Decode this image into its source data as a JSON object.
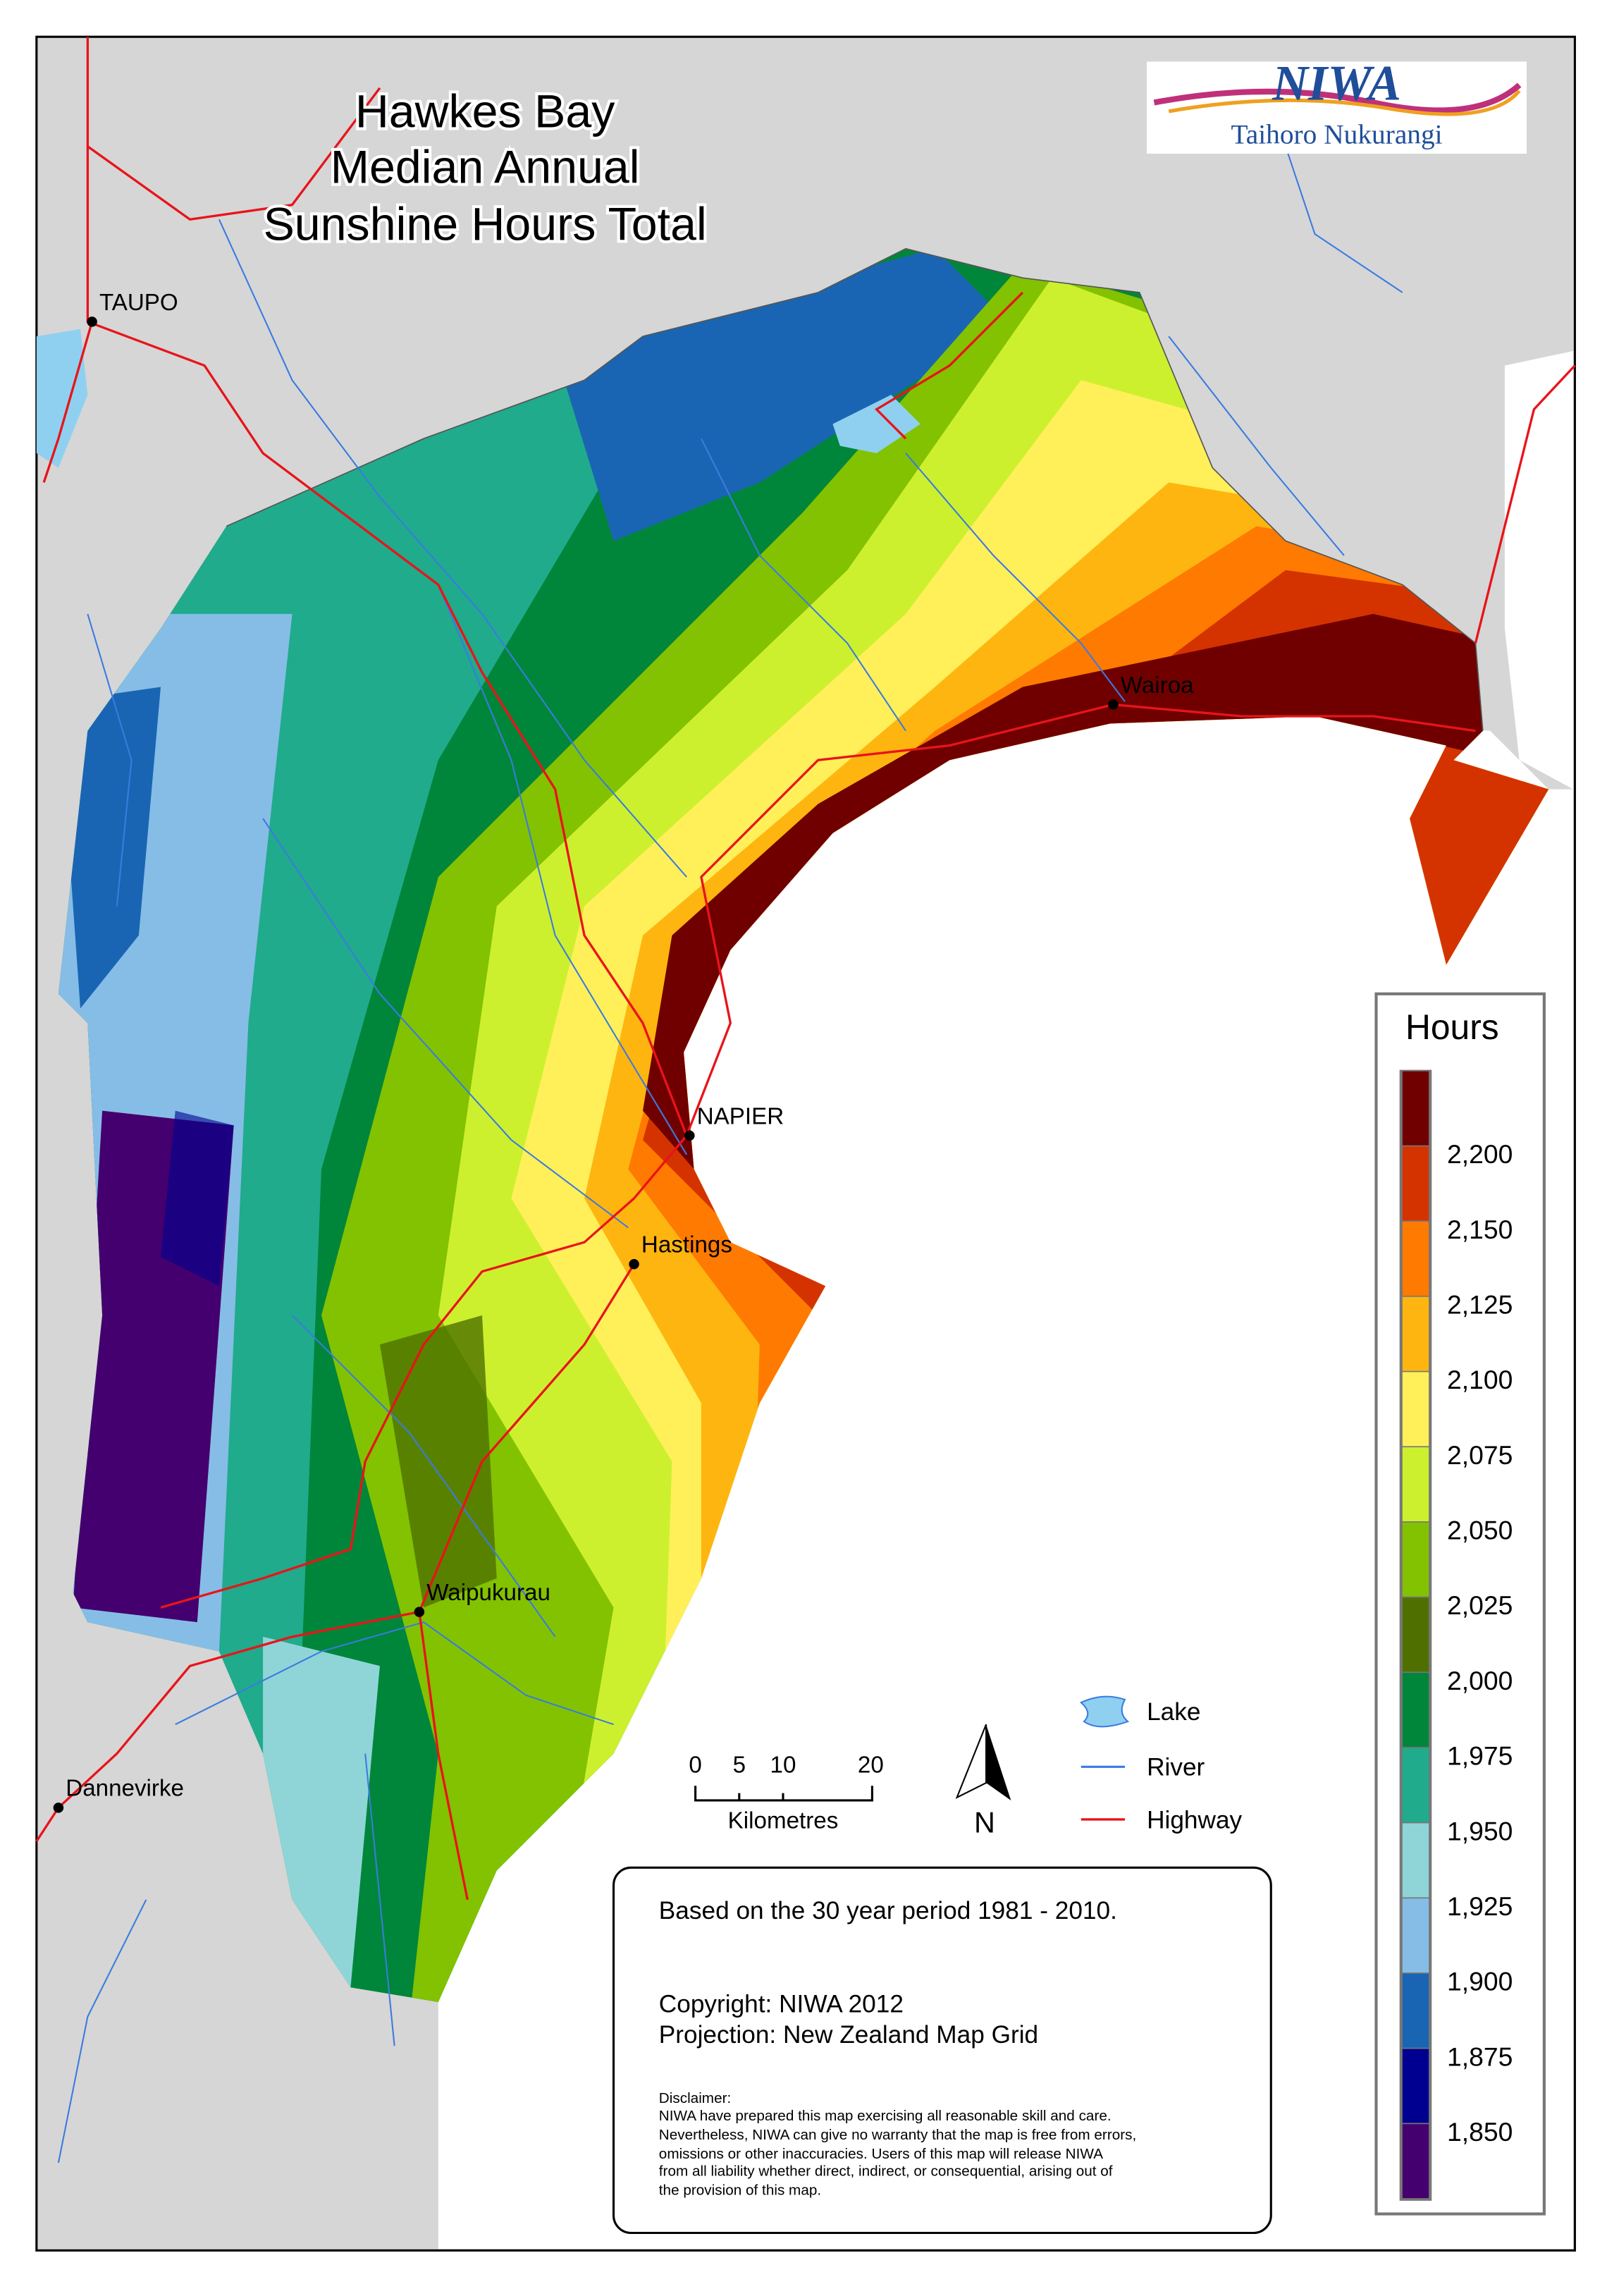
{
  "title": [
    "Hawkes Bay",
    "Median Annual",
    "Sunshine Hours Total"
  ],
  "logo": {
    "name": "NIWA",
    "tagline": "Taihoro Nukurangi"
  },
  "places": {
    "taupo": "TAUPO",
    "wairoa": "Wairoa",
    "napier": "NAPIER",
    "hastings": "Hastings",
    "waipukurau": "Waipukurau",
    "dannevirke": "Dannevirke"
  },
  "scale_bar": {
    "ticks": [
      "0",
      "5",
      "10",
      "20"
    ],
    "unit": "Kilometres"
  },
  "north_arrow": {
    "label": "N"
  },
  "feature_legend": {
    "lake": "Lake",
    "river": "River",
    "highway": "Highway"
  },
  "info": {
    "period": "Based on the 30 year period 1981 - 2010.",
    "copyright": "Copyright: NIWA 2012",
    "projection": "Projection: New Zealand Map Grid",
    "disclaimer": [
      "Disclaimer:",
      "NIWA have prepared this map exercising all reasonable skill and care.",
      "Nevertheless, NIWA can give no warranty that the map is free from errors,",
      "omissions or other inaccuracies. Users of this map will release NIWA",
      "from all liability whether direct, indirect, or consequential, arising out of",
      "the provision of this map."
    ]
  },
  "legend": {
    "title": "Hours",
    "colors": [
      "#700000",
      "#d43300",
      "#ff7a00",
      "#ffb510",
      "#fff05a",
      "#cdf02e",
      "#82c200",
      "#4f7000",
      "#00863a",
      "#20ab8c",
      "#8fd5d8",
      "#86bde6",
      "#1a65b3",
      "#000090",
      "#44006e"
    ],
    "labels": [
      "2,200",
      "2,150",
      "2,125",
      "2,100",
      "2,075",
      "2,050",
      "2,025",
      "2,000",
      "1,975",
      "1,950",
      "1,925",
      "1,900",
      "1,875",
      "1,850"
    ]
  },
  "colors": {
    "land": "#d6d6d6",
    "river": "#3a7be0",
    "highway": "#e8141a",
    "lake": "#8fd0f0"
  }
}
